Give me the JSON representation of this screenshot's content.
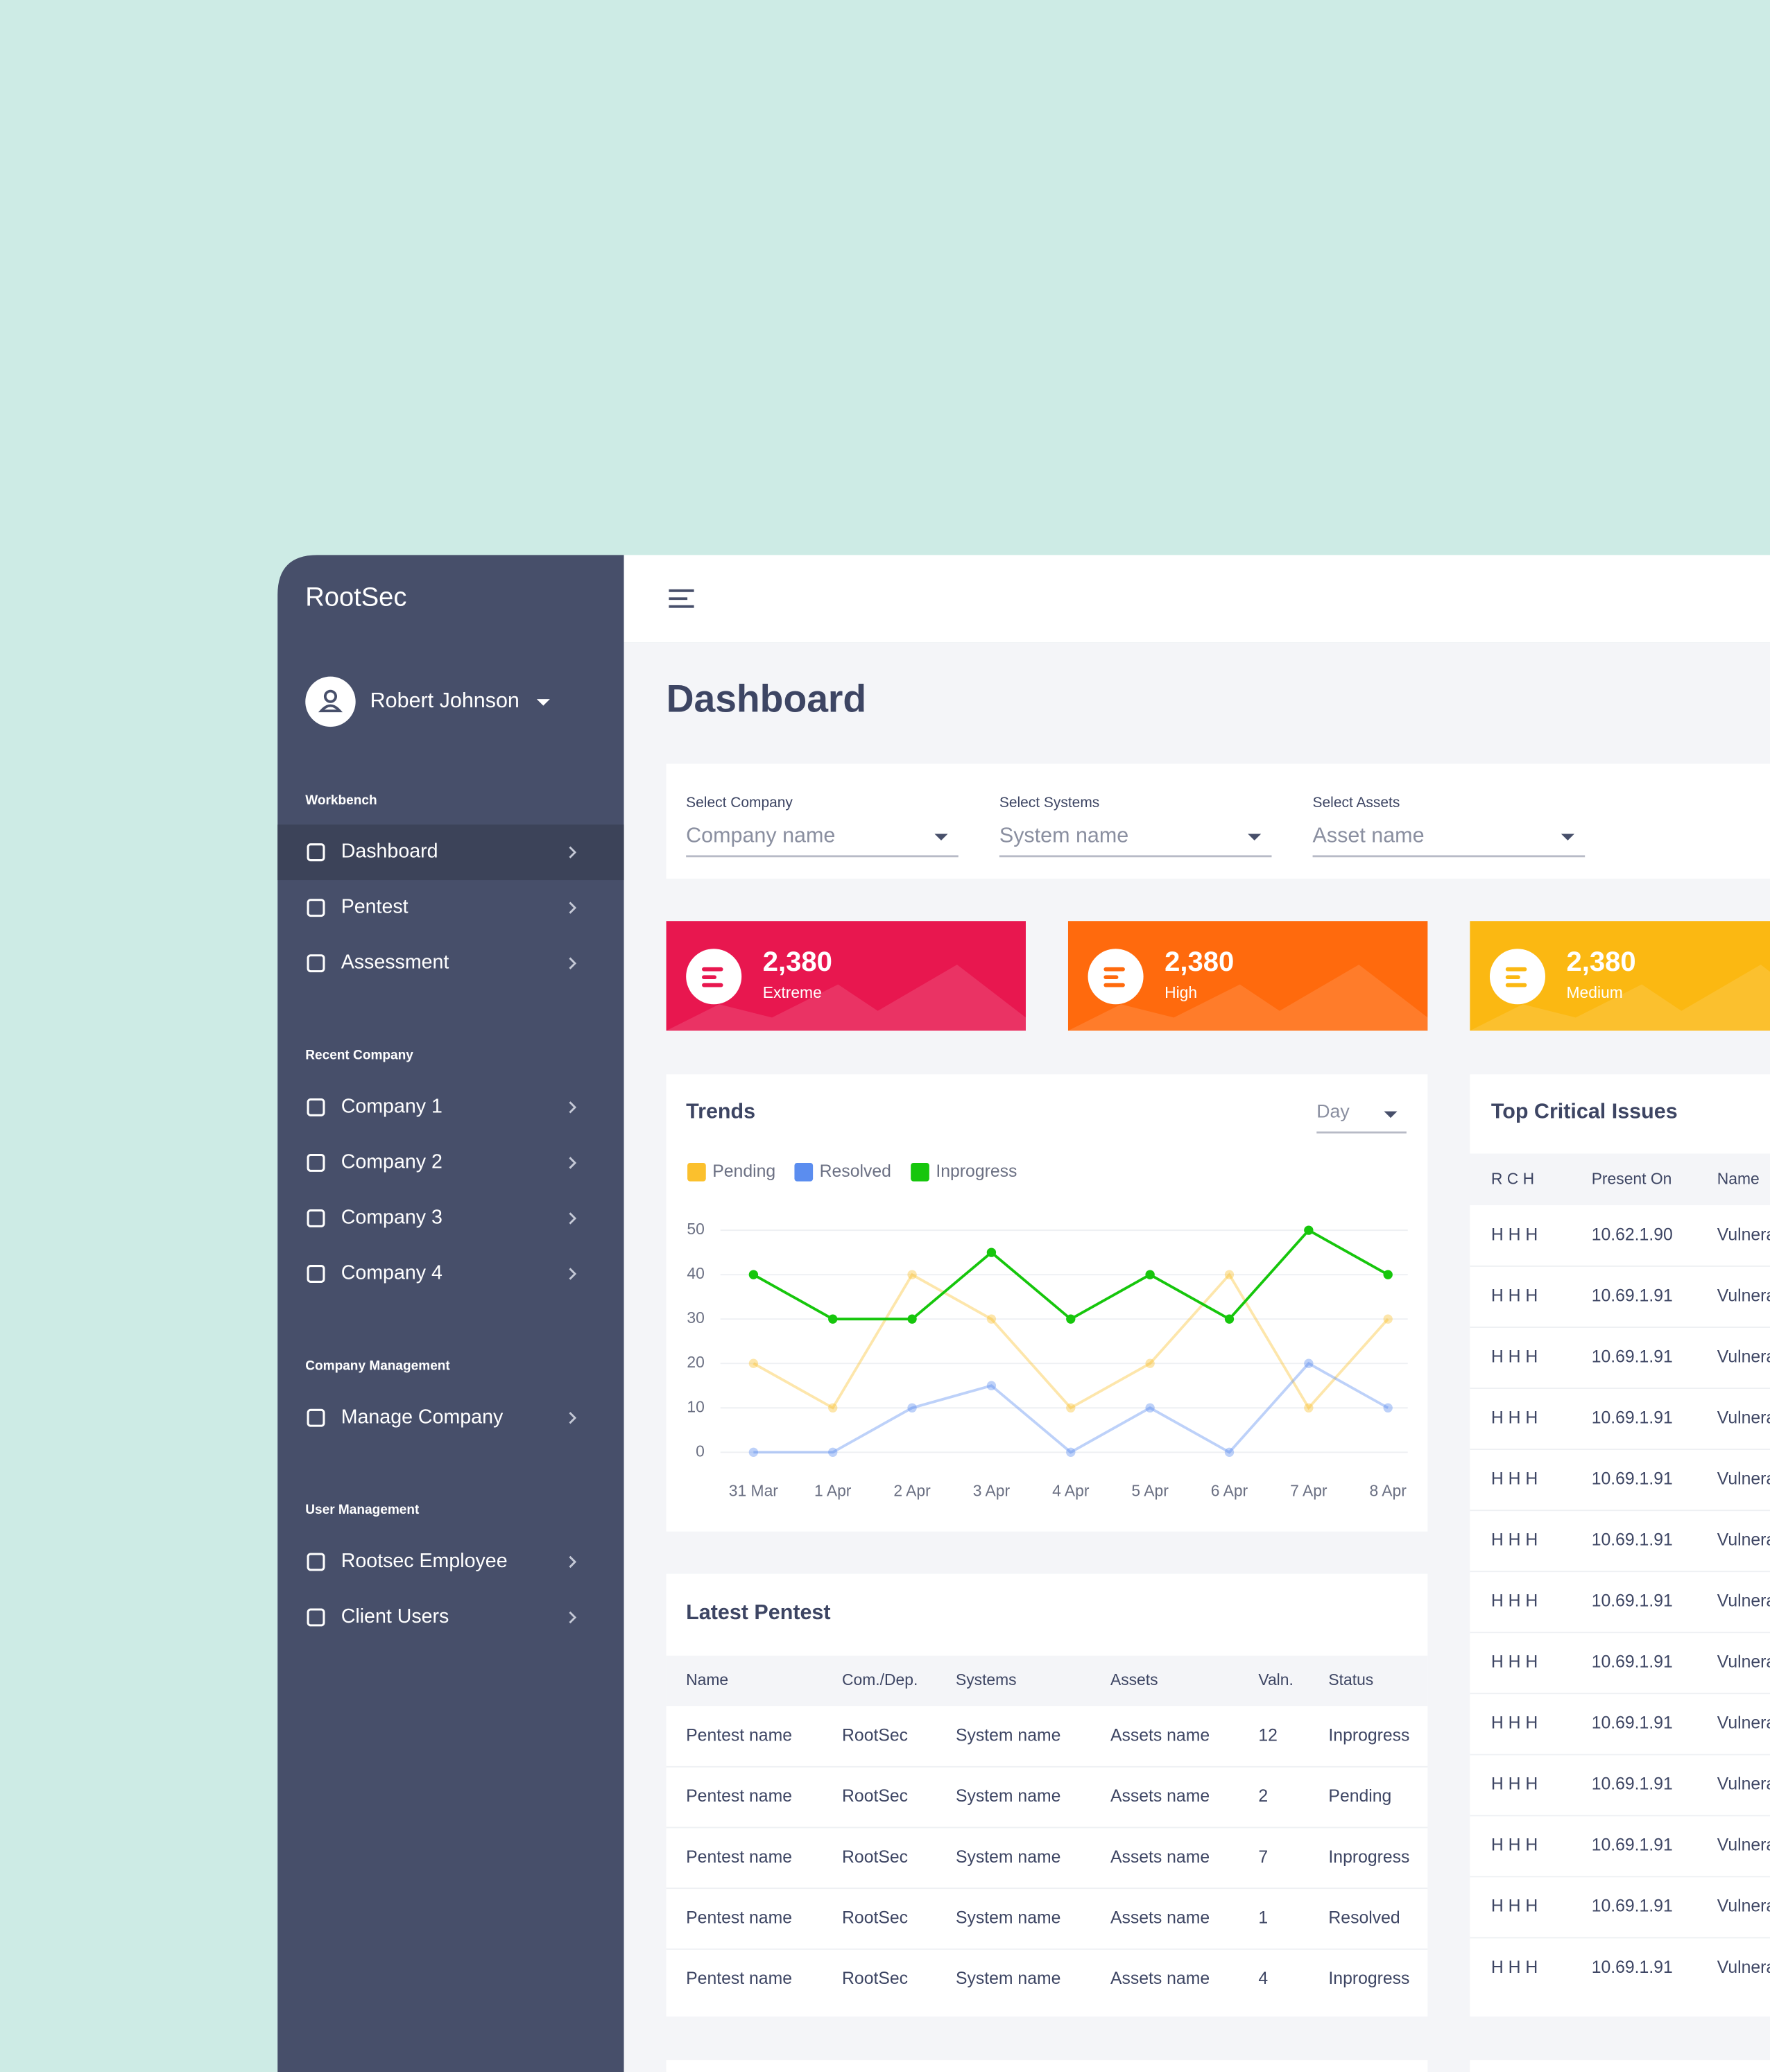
{
  "brand": "RootSec",
  "user": "Robert Johnson",
  "sidebar": [
    {
      "heading": "Workbench",
      "items": [
        "Dashboard",
        "Pentest",
        "Assessment"
      ]
    },
    {
      "heading": "Recent Company",
      "items": [
        "Company 1",
        "Company 2",
        "Company 3",
        "Company 4"
      ]
    },
    {
      "heading": "Company Management",
      "items": [
        "Manage Company"
      ]
    },
    {
      "heading": "User Management",
      "items": [
        "Rootsec Employee",
        "Client Users"
      ]
    }
  ],
  "page_title": "Dashboard",
  "filters": [
    {
      "label": "Select Company",
      "placeholder": "Company name"
    },
    {
      "label": "Select Systems",
      "placeholder": "System name"
    },
    {
      "label": "Select Assets",
      "placeholder": "Asset name"
    }
  ],
  "stats": [
    {
      "value": "2,380",
      "label": "Extreme",
      "color": "#e8174f"
    },
    {
      "value": "2,380",
      "label": "High",
      "color": "#ff6a0d"
    },
    {
      "value": "2,380",
      "label": "Medium",
      "color": "#fbb812"
    }
  ],
  "trends": {
    "type": "line",
    "title": "Trends",
    "period": "Day",
    "categories": [
      "31 Mar",
      "1 Apr",
      "2 Apr",
      "3 Apr",
      "4 Apr",
      "5 Apr",
      "6 Apr",
      "7 Apr",
      "8 Apr"
    ],
    "series": [
      {
        "name": "Pending",
        "color": "#fbc02d",
        "values": [
          20,
          10,
          40,
          30,
          10,
          20,
          40,
          10,
          30
        ]
      },
      {
        "name": "Resolved",
        "color": "#5b8def",
        "values": [
          0,
          0,
          10,
          15,
          0,
          10,
          0,
          20,
          10
        ]
      },
      {
        "name": "Inprogress",
        "color": "#16c60c",
        "values": [
          40,
          30,
          30,
          45,
          30,
          40,
          30,
          50,
          40
        ]
      }
    ],
    "ylim": [
      0,
      50
    ],
    "yticks": [
      0,
      10,
      20,
      30,
      40,
      50
    ],
    "grid": true
  },
  "latest_pentest": {
    "title": "Latest Pentest",
    "columns": [
      "Name",
      "Com./Dep.",
      "Systems",
      "Assets",
      "Valn.",
      "Status"
    ],
    "rows": [
      [
        "Pentest name",
        "RootSec",
        "System name",
        "Assets name",
        12,
        "Inprogress"
      ],
      [
        "Pentest name",
        "RootSec",
        "System name",
        "Assets name",
        2,
        "Pending"
      ],
      [
        "Pentest name",
        "RootSec",
        "System name",
        "Assets name",
        7,
        "Inprogress"
      ],
      [
        "Pentest name",
        "RootSec",
        "System name",
        "Assets name",
        1,
        "Resolved"
      ],
      [
        "Pentest name",
        "RootSec",
        "System name",
        "Assets name",
        4,
        "Inprogress"
      ]
    ]
  },
  "top_critical": {
    "title": "Top Critical Issues",
    "columns": [
      "R C H",
      "Present On",
      "Name"
    ],
    "rows": [
      [
        "H H H",
        "10.62.1.90",
        "Vulnera"
      ],
      [
        "H H H",
        "10.69.1.91",
        "Vulnera"
      ],
      [
        "H H H",
        "10.69.1.91",
        "Vulnera"
      ],
      [
        "H H H",
        "10.69.1.91",
        "Vulnera"
      ],
      [
        "H H H",
        "10.69.1.91",
        "Vulnera"
      ],
      [
        "H H H",
        "10.69.1.91",
        "Vulnera"
      ],
      [
        "H H H",
        "10.69.1.91",
        "Vulnera"
      ],
      [
        "H H H",
        "10.69.1.91",
        "Vulnera"
      ],
      [
        "H H H",
        "10.69.1.91",
        "Vulnera"
      ],
      [
        "H H H",
        "10.69.1.91",
        "Vulnera"
      ],
      [
        "H H H",
        "10.69.1.91",
        "Vulnera"
      ],
      [
        "H H H",
        "10.69.1.91",
        "Vulnera"
      ],
      [
        "H H H",
        "10.69.1.91",
        "Vulnera"
      ]
    ]
  }
}
